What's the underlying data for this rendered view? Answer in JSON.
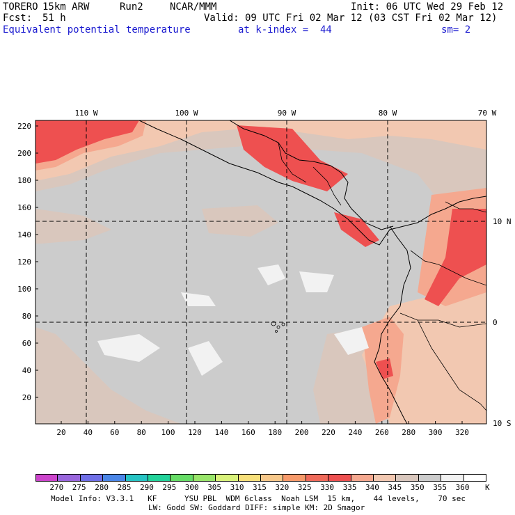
{
  "header": {
    "model": "TORERO",
    "resolution": "15km ARW",
    "run": "Run2",
    "org": "NCAR/MMM",
    "init": "Init: 06 UTC Wed 29 Feb 12",
    "fcst_label": "Fcst:",
    "fcst_value": "51 h",
    "valid": "Valid: 09 UTC Fri 02 Mar 12 (03 CST Fri 02 Mar 12)",
    "field": "Equivalent potential temperature",
    "level": "at k-index =  44",
    "smoothing": "sm= 2"
  },
  "map": {
    "top_lon_labels": [
      "110 W",
      "100 W",
      "90 W",
      "80 W",
      "70 W"
    ],
    "right_lat_labels": [
      "10 N",
      "0",
      "10 S"
    ],
    "y_ticks": [
      "20",
      "40",
      "60",
      "80",
      "100",
      "120",
      "140",
      "160",
      "180",
      "200",
      "220"
    ],
    "x_ticks": [
      "20",
      "40",
      "60",
      "80",
      "100",
      "120",
      "140",
      "160",
      "180",
      "200",
      "220",
      "240",
      "260",
      "280",
      "300",
      "320"
    ],
    "grid_style": "dashed"
  },
  "colorbar": {
    "levels": [
      "270",
      "275",
      "280",
      "285",
      "290",
      "295",
      "300",
      "305",
      "310",
      "315",
      "320",
      "325",
      "330",
      "335",
      "340",
      "345",
      "350",
      "355",
      "360"
    ],
    "unit": "K",
    "colors": [
      "#cc44cc",
      "#9966dd",
      "#6f6fe8",
      "#4a86e8",
      "#26c4c4",
      "#22d39a",
      "#66dd66",
      "#99e66a",
      "#d9f27a",
      "#f7e07a",
      "#f7c88a",
      "#f79a6a",
      "#f06a5a",
      "#ee5050",
      "#f5a88f",
      "#f2c8b1",
      "#d9c7bd",
      "#cccccc",
      "#f2f2f2",
      "#ffffff"
    ]
  },
  "footer": {
    "line1": "Model Info: V3.3.1   KF      YSU PBL  WDM 6class  Noah LSM  15 km,    44 levels,    70 sec",
    "line2": "LW: Godd SW: Goddard DIFF: simple KM: 2D Smagor"
  }
}
